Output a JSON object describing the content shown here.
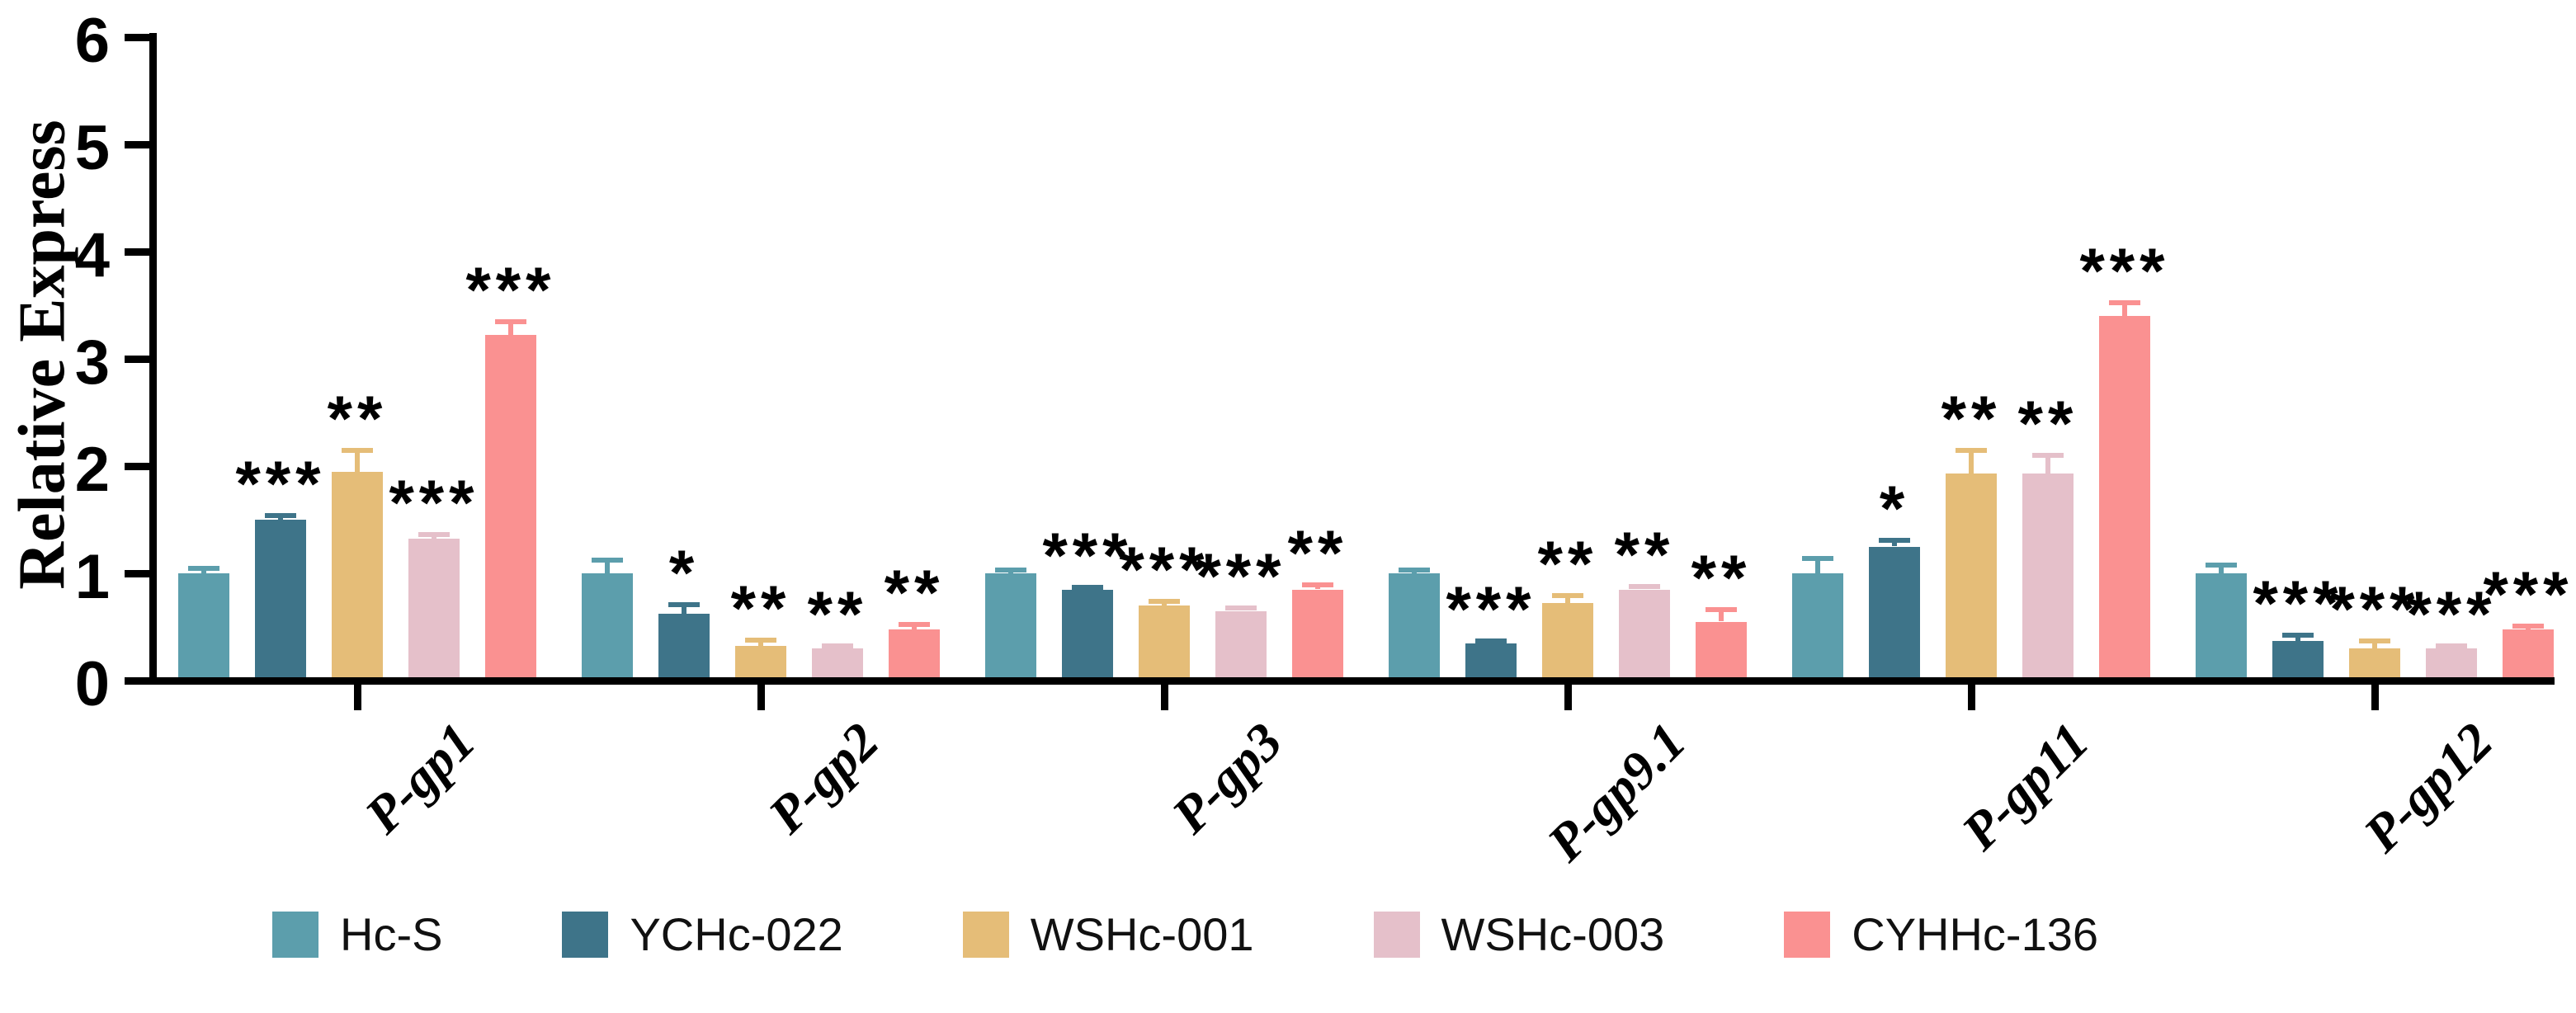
{
  "figure": {
    "background": "#ffffff"
  },
  "chart_data": {
    "type": "bar",
    "title": "",
    "ylabel": "Relative Express",
    "xlabel": "",
    "ylim": [
      0,
      6
    ],
    "yticks": [
      0,
      1,
      2,
      3,
      4,
      5,
      6
    ],
    "grid": false,
    "legend_position": "bottom",
    "error_bars": true,
    "axis_color": "#000000",
    "significance_symbol_color": "#000000",
    "categories": [
      "P-gp1",
      "P-gp2",
      "P-gp3",
      "P-gp9.1",
      "P-gp11",
      "P-gp12"
    ],
    "series": [
      {
        "name": "Hc-S",
        "color": "#5C9EAC",
        "values": [
          1.0,
          1.0,
          1.0,
          1.0,
          1.0,
          1.0
        ],
        "errors": [
          0.05,
          0.12,
          0.03,
          0.03,
          0.14,
          0.08
        ],
        "significance": [
          "",
          "",
          "",
          "",
          "",
          ""
        ]
      },
      {
        "name": "YCHc-022",
        "color": "#3E7489",
        "values": [
          1.5,
          0.62,
          0.85,
          0.35,
          1.25,
          0.37
        ],
        "errors": [
          0.04,
          0.09,
          0.02,
          0.02,
          0.06,
          0.05
        ],
        "significance": [
          "***",
          "*",
          "***",
          "***",
          "*",
          "***"
        ]
      },
      {
        "name": "WSHc-001",
        "color": "#E5BD78",
        "values": [
          1.95,
          0.32,
          0.7,
          0.72,
          1.93,
          0.3
        ],
        "errors": [
          0.2,
          0.06,
          0.04,
          0.07,
          0.22,
          0.07
        ],
        "significance": [
          "**",
          "**",
          "***",
          "**",
          "**",
          "***"
        ]
      },
      {
        "name": "WSHc-003",
        "color": "#E5C0CA",
        "values": [
          1.32,
          0.3,
          0.65,
          0.85,
          1.93,
          0.3
        ],
        "errors": [
          0.04,
          0.02,
          0.03,
          0.03,
          0.17,
          0.02
        ],
        "significance": [
          "***",
          "**",
          "***",
          "**",
          "**",
          "***"
        ]
      },
      {
        "name": "CYHHc-136",
        "color": "#FA9191",
        "values": [
          3.22,
          0.48,
          0.85,
          0.55,
          3.4,
          0.48
        ],
        "errors": [
          0.13,
          0.04,
          0.04,
          0.11,
          0.12,
          0.03
        ],
        "significance": [
          "***",
          "**",
          "**",
          "**",
          "***",
          "***"
        ]
      }
    ]
  }
}
